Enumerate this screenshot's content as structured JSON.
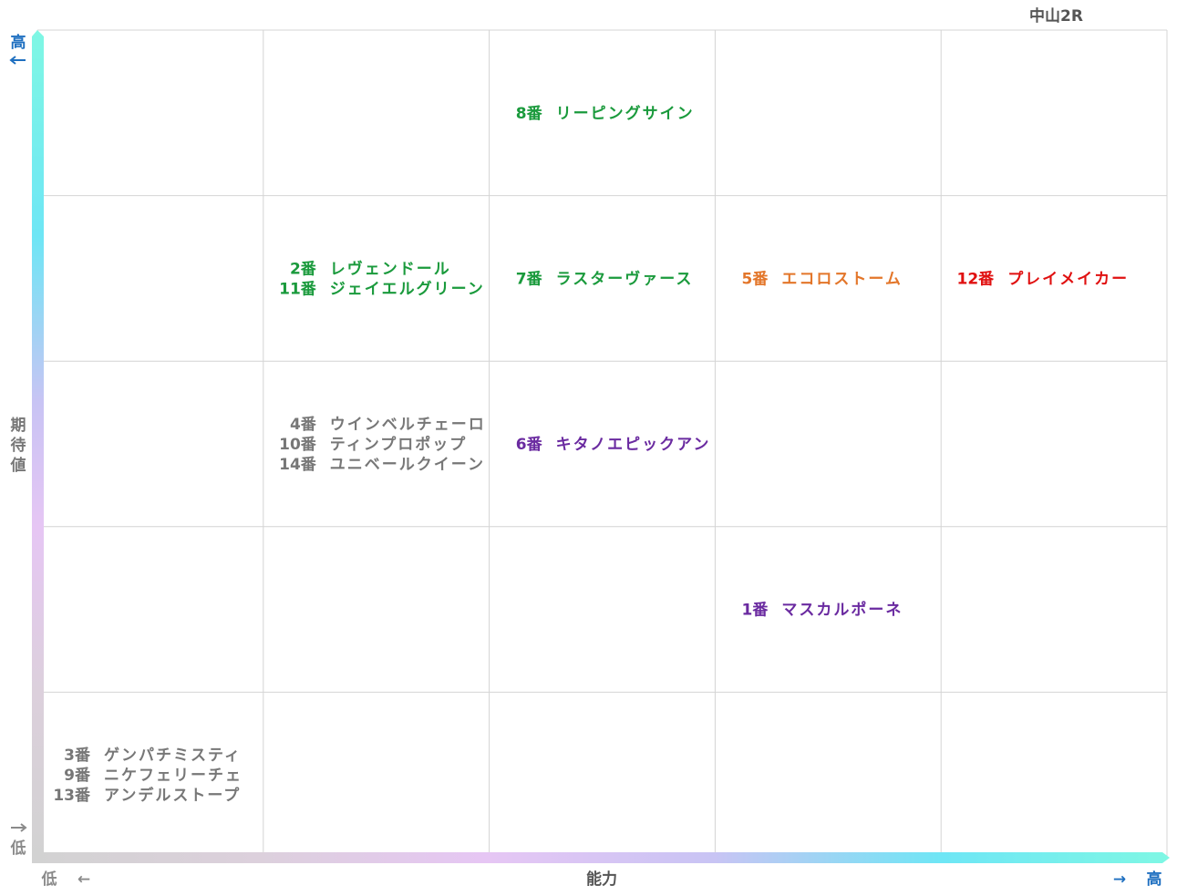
{
  "race": "中山2R",
  "axes": {
    "y_label": "期待値",
    "y_high": "高",
    "y_low": "低",
    "x_label": "能力",
    "x_low": "低",
    "x_high": "高",
    "arrow_left": "←",
    "arrow_right": "→",
    "arrow_up": "↑",
    "arrow_down": "↓"
  },
  "colors": {
    "green": "#1a9a3c",
    "purple": "#6a2aa0",
    "orange": "#e3762a",
    "red": "#e01010",
    "gray": "#777777",
    "axis_blue": "#1e6fc0",
    "axis_gray": "#8a8a8a",
    "grid": "#d4d4d4"
  },
  "chart_data": {
    "type": "table",
    "x_levels": 5,
    "y_levels": 5,
    "horses": [
      {
        "num": "8番",
        "name": "リーピングサイン",
        "x": 3,
        "y": 5,
        "color": "green"
      },
      {
        "num": "2番",
        "name": "レヴェンドール",
        "x": 2,
        "y": 4,
        "color": "green"
      },
      {
        "num": "11番",
        "name": "ジェイエルグリーン",
        "x": 2,
        "y": 4,
        "color": "green"
      },
      {
        "num": "7番",
        "name": "ラスターヴァース",
        "x": 3,
        "y": 4,
        "color": "green"
      },
      {
        "num": "5番",
        "name": "エコロストーム",
        "x": 4,
        "y": 4,
        "color": "orange"
      },
      {
        "num": "12番",
        "name": "プレイメイカー",
        "x": 5,
        "y": 4,
        "color": "red"
      },
      {
        "num": "4番",
        "name": "ウインベルチェーロ",
        "x": 2,
        "y": 3,
        "color": "gray"
      },
      {
        "num": "10番",
        "name": "ティンプロポップ",
        "x": 2,
        "y": 3,
        "color": "gray"
      },
      {
        "num": "14番",
        "name": "ユニベールクイーン",
        "x": 2,
        "y": 3,
        "color": "gray"
      },
      {
        "num": "6番",
        "name": "キタノエピックアン",
        "x": 3,
        "y": 3,
        "color": "purple"
      },
      {
        "num": "1番",
        "name": "マスカルポーネ",
        "x": 4,
        "y": 2,
        "color": "purple"
      },
      {
        "num": "3番",
        "name": "ゲンパチミスティ",
        "x": 1,
        "y": 1,
        "color": "gray"
      },
      {
        "num": "9番",
        "name": "ニケフェリーチェ",
        "x": 1,
        "y": 1,
        "color": "gray"
      },
      {
        "num": "13番",
        "name": "アンデルストープ",
        "x": 1,
        "y": 1,
        "color": "gray"
      }
    ]
  }
}
